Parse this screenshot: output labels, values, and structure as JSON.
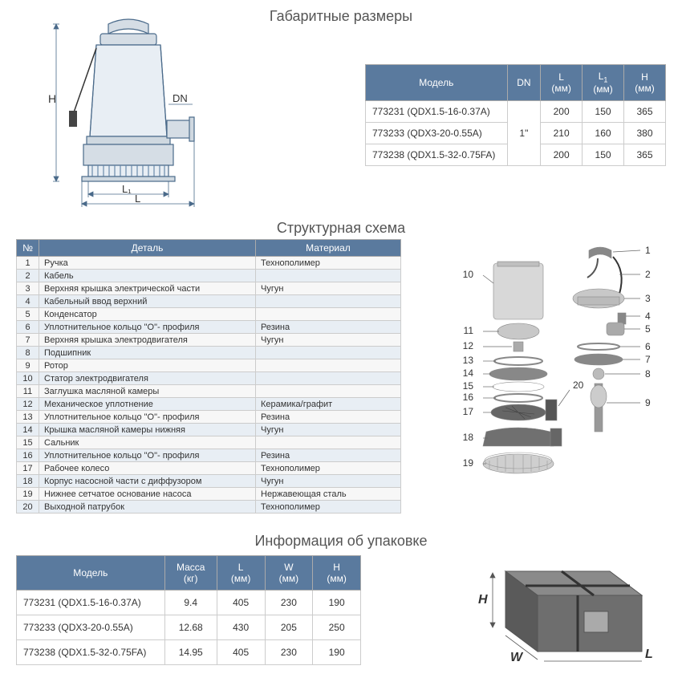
{
  "colors": {
    "header_bg": "#5a7a9e",
    "header_fg": "#ffffff",
    "even_row": "#e8eef4",
    "odd_row": "#f7f7f7",
    "border": "#cccccc",
    "title_color": "#555555"
  },
  "section1": {
    "title": "Габаритные размеры",
    "drawing_labels": {
      "H": "H",
      "DN": "DN",
      "L": "L",
      "L1": "L₁"
    },
    "table": {
      "headers": [
        "Модель",
        "DN",
        "L (мм)",
        "L₁ (мм)",
        "H (мм)"
      ],
      "dn_value": "1\"",
      "rows": [
        {
          "model": "773231 (QDX1.5-16-0.37A)",
          "L": "200",
          "L1": "150",
          "H": "365"
        },
        {
          "model": "773233 (QDX3-20-0.55A)",
          "L": "210",
          "L1": "160",
          "H": "380"
        },
        {
          "model": "773238 (QDX1.5-32-0.75FA)",
          "L": "200",
          "L1": "150",
          "H": "365"
        }
      ]
    }
  },
  "section2": {
    "title": "Структурная схема",
    "table": {
      "headers": [
        "№",
        "Деталь",
        "Материал"
      ],
      "rows": [
        {
          "n": "1",
          "part": "Ручка",
          "mat": "Технополимер"
        },
        {
          "n": "2",
          "part": "Кабель",
          "mat": ""
        },
        {
          "n": "3",
          "part": "Верхняя крышка электрической части",
          "mat": "Чугун"
        },
        {
          "n": "4",
          "part": "Кабельный ввод верхний",
          "mat": ""
        },
        {
          "n": "5",
          "part": "Конденсатор",
          "mat": ""
        },
        {
          "n": "6",
          "part": "Уплотнительное кольцо \"О\"- профиля",
          "mat": "Резина"
        },
        {
          "n": "7",
          "part": "Верхняя крышка электродвигателя",
          "mat": "Чугун"
        },
        {
          "n": "8",
          "part": "Подшипник",
          "mat": ""
        },
        {
          "n": "9",
          "part": "Ротор",
          "mat": ""
        },
        {
          "n": "10",
          "part": "Статор электродвигателя",
          "mat": ""
        },
        {
          "n": "11",
          "part": "Заглушка масляной камеры",
          "mat": ""
        },
        {
          "n": "12",
          "part": "Механическое уплотнение",
          "mat": "Керамика/графит"
        },
        {
          "n": "13",
          "part": "Уплотнительное кольцо \"О\"- профиля",
          "mat": "Резина"
        },
        {
          "n": "14",
          "part": "Крышка масляной камеры нижняя",
          "mat": "Чугун"
        },
        {
          "n": "15",
          "part": "Сальник",
          "mat": ""
        },
        {
          "n": "16",
          "part": "Уплотнительное кольцо \"О\"- профиля",
          "mat": "Резина"
        },
        {
          "n": "17",
          "part": "Рабочее колесо",
          "mat": "Технополимер"
        },
        {
          "n": "18",
          "part": "Корпус насосной части с диффузором",
          "mat": "Чугун"
        },
        {
          "n": "19",
          "part": "Нижнее сетчатое основание насоса",
          "mat": "Нержавеющая сталь"
        },
        {
          "n": "20",
          "part": "Выходной патрубок",
          "mat": "Технополимер"
        }
      ]
    },
    "callouts": [
      "1",
      "2",
      "3",
      "4",
      "5",
      "6",
      "7",
      "8",
      "9",
      "10",
      "11",
      "12",
      "13",
      "14",
      "15",
      "16",
      "17",
      "18",
      "19",
      "20"
    ]
  },
  "section3": {
    "title": "Информация об упаковке",
    "table": {
      "headers": [
        "Модель",
        "Масса (кг)",
        "L (мм)",
        "W (мм)",
        "H (мм)"
      ],
      "rows": [
        {
          "model": "773231 (QDX1.5-16-0.37A)",
          "mass": "9.4",
          "L": "405",
          "W": "230",
          "H": "190"
        },
        {
          "model": "773233 (QDX3-20-0.55A)",
          "mass": "12.68",
          "L": "430",
          "W": "205",
          "H": "250"
        },
        {
          "model": "773238 (QDX1.5-32-0.75FA)",
          "mass": "14.95",
          "L": "405",
          "W": "230",
          "H": "190"
        }
      ]
    },
    "box_labels": {
      "W": "W",
      "L": "L",
      "H": "H"
    }
  }
}
